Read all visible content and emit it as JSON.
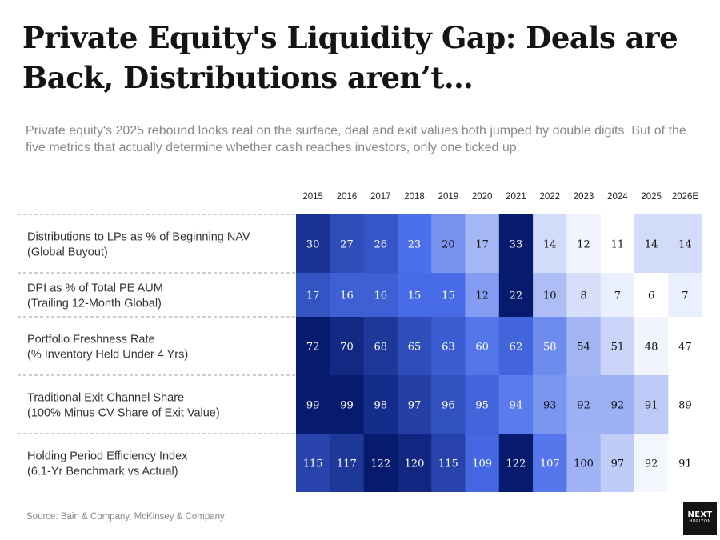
{
  "title": "Private Equity's Liquidity Gap: Deals are Back, Distributions aren’t…",
  "subtitle": "Private equity's 2025 rebound looks real on the surface, deal and exit values both jumped by double digits. But of the five metrics that actually determine whether cash reaches investors, only one ticked up.",
  "source": "Source: Bain & Company, McKinsey & Company",
  "logo": {
    "line1": "NEXT",
    "line2": "HORIZON"
  },
  "colors": {
    "scale_low": "#ffffff",
    "scale_high": "#061a6e",
    "grid": "#999999",
    "label": "#333333"
  },
  "chart_data": {
    "type": "heatmap",
    "columns": [
      "2015",
      "2016",
      "2017",
      "2018",
      "2019",
      "2020",
      "2021",
      "2022",
      "2023",
      "2024",
      "2025",
      "2026E"
    ],
    "rows": [
      {
        "line1": "Distributions to LPs as % of Beginning NAV",
        "line2": "(Global Buyout)",
        "values": [
          30,
          27,
          26,
          23,
          20,
          17,
          33,
          14,
          12,
          11,
          14,
          14
        ]
      },
      {
        "line1": "DPI as % of Total PE AUM",
        "line2": "(Trailing 12-Month Global)",
        "values": [
          17,
          16,
          16,
          15,
          15,
          12,
          22,
          10,
          8,
          7,
          6,
          7
        ]
      },
      {
        "line1": "Portfolio Freshness Rate",
        "line2": "(% Inventory Held Under 4 Yrs)",
        "values": [
          72,
          70,
          68,
          65,
          63,
          60,
          62,
          58,
          54,
          51,
          48,
          47
        ]
      },
      {
        "line1": "Traditional Exit Channel Share",
        "line2": "(100% Minus CV Share of Exit Value)",
        "values": [
          99,
          99,
          98,
          97,
          96,
          95,
          94,
          93,
          92,
          92,
          91,
          89
        ]
      },
      {
        "line1": "Holding Period Efficiency Index",
        "line2": "(6.1-Yr Benchmark vs Actual)",
        "values": [
          115,
          117,
          122,
          120,
          115,
          109,
          122,
          107,
          100,
          97,
          92,
          91
        ]
      }
    ]
  }
}
